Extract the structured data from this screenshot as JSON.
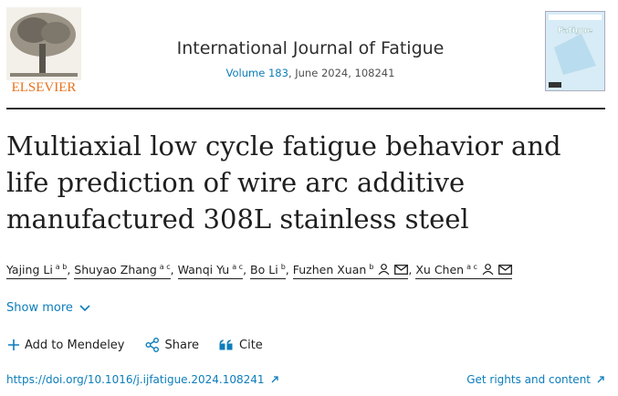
{
  "header": {
    "publisher": "ELSEVIER",
    "journal": "International Journal of Fatigue",
    "volume_link": "Volume 183",
    "issue_info": ", June 2024, 108241",
    "cover_title": "Fatigue"
  },
  "article": {
    "title": "Multiaxial low cycle fatigue behavior and life prediction of wire arc additive manufactured 308L stainless steel",
    "separator": ",",
    "authors": [
      {
        "name": "Yajing Li",
        "affiliations": "a b",
        "contact": false
      },
      {
        "name": "Shuyao Zhang",
        "affiliations": "a c",
        "contact": false
      },
      {
        "name": "Wanqi Yu",
        "affiliations": "a c",
        "contact": false
      },
      {
        "name": "Bo Li",
        "affiliations": "b",
        "contact": false
      },
      {
        "name": "Fuzhen Xuan",
        "affiliations": "b",
        "contact": true
      },
      {
        "name": "Xu Chen",
        "affiliations": "a c",
        "contact": true
      }
    ]
  },
  "actions": {
    "show_more": "Show more",
    "add_mendeley": "Add to Mendeley",
    "share": "Share",
    "cite": "Cite"
  },
  "links": {
    "doi": "https://doi.org/10.1016/j.ijfatigue.2024.108241",
    "rights": "Get rights and content"
  }
}
